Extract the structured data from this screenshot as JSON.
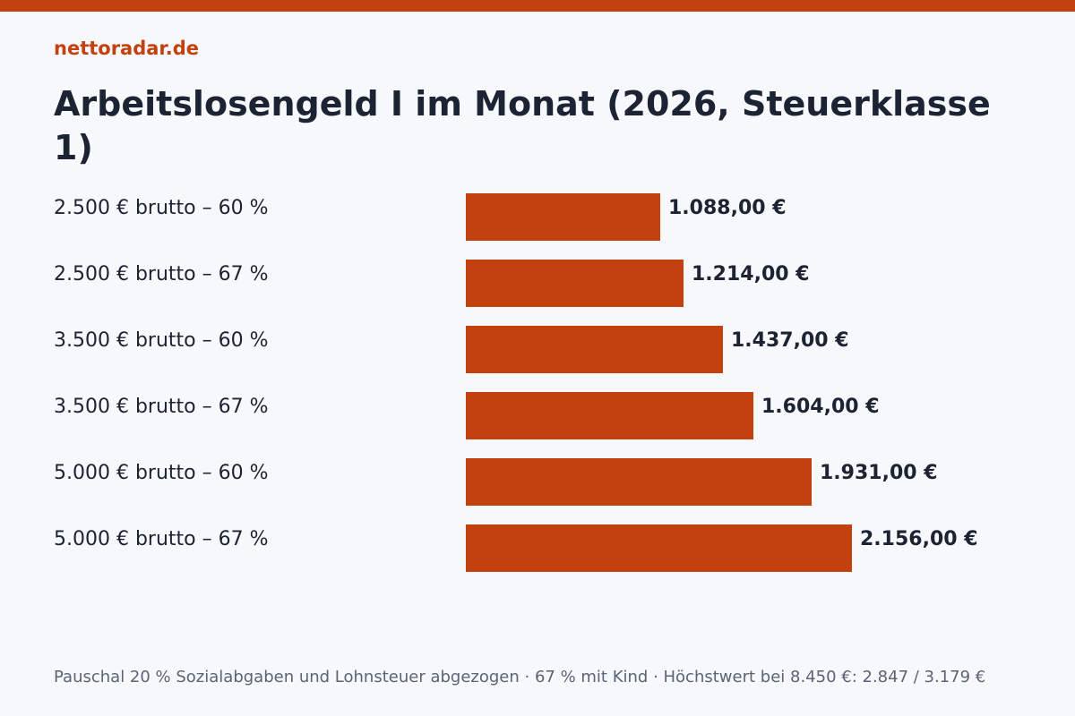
{
  "header": {
    "brand": "nettoradar.de",
    "title": "Arbeitslosengeld I im Monat (2026, Steuerklasse 1)"
  },
  "footer": {
    "note": "Pauschal 20 % Sozialabgaben und Lohnsteuer abgezogen · 67 % mit Kind · Höchstwert bei 8.450 €: 2.847 / 3.179 €"
  },
  "colors": {
    "accent": "#c2410f",
    "background": "#f7f8fb",
    "text": "#1c2333",
    "muted": "#5a6475"
  },
  "chart_data": {
    "type": "bar",
    "orientation": "horizontal",
    "title": "Arbeitslosengeld I im Monat (2026, Steuerklasse 1)",
    "categories": [
      "2.500 € brutto – 60 %",
      "2.500 € brutto – 67 %",
      "3.500 € brutto – 60 %",
      "3.500 € brutto – 67 %",
      "5.000 € brutto – 60 %",
      "5.000 € brutto – 67 %"
    ],
    "values": [
      1088,
      1214,
      1437,
      1604,
      1931,
      2156
    ],
    "value_labels": [
      "1.088,00 €",
      "1.214,00 €",
      "1.437,00 €",
      "1.604,00 €",
      "1.931,00 €",
      "2.156,00 €"
    ],
    "xlim": [
      0,
      2156
    ],
    "grid": false,
    "legend": "none"
  }
}
